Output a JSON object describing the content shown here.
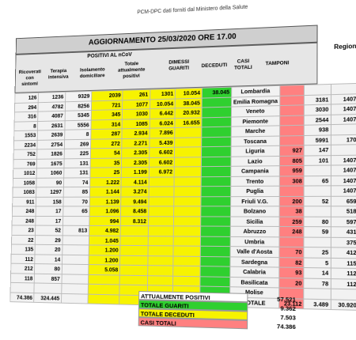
{
  "source_line": "PCM-DPC dati forniti dal Ministero della Salute",
  "title": "AGGIORNAMENTO 25/03/2020 ORE 17.00",
  "regione_header": "Regione",
  "group_header": "POSITIVI AL nCoV",
  "headers": {
    "ricoverati": "Ricoverati con sintomi",
    "terapia": "Terapia intensiva",
    "isolamento": "Isolamento domiciliare",
    "totale_positivi": "Totale attualmente positivi",
    "dimessi": "DIMESSI GUARITI",
    "deceduti": "DECEDUTI",
    "casi_totali": "CASI TOTALI",
    "tamponi": "TAMPONI"
  },
  "rows": [
    [
      "126",
      "1236",
      "9329",
      "2039",
      "261",
      "1301",
      "10.054",
      "38.045",
      "Lombardia",
      "",
      "",
      ""
    ],
    [
      "294",
      "4782",
      "8256",
      "721",
      "1077",
      "10.054",
      "38.045",
      "",
      "Emilia Romagna",
      "",
      "3181",
      "1407"
    ],
    [
      "316",
      "4087",
      "5345",
      "345",
      "1030",
      "6.442",
      "20.932",
      "",
      "Veneto",
      "",
      "3030",
      "1407"
    ],
    [
      "8",
      "2631",
      "5556",
      "314",
      "1085",
      "6.024",
      "16.655",
      "",
      "Piemonte",
      "",
      "2544",
      "1407"
    ],
    [
      "1553",
      "2639",
      "8",
      "287",
      "2.934",
      "7.896",
      "",
      "",
      "Marche",
      "",
      "938",
      ""
    ],
    [
      "2234",
      "2754",
      "269",
      "272",
      "2.271",
      "5.439",
      "",
      "",
      "Toscana",
      "",
      "5991",
      "170"
    ],
    [
      "752",
      "1826",
      "225",
      "54",
      "2.305",
      "6.602",
      "",
      "",
      "Liguria",
      "927",
      "147",
      ""
    ],
    [
      "769",
      "1675",
      "131",
      "35",
      "2.305",
      "6.602",
      "",
      "",
      "Lazio",
      "805",
      "101",
      "1407"
    ],
    [
      "1012",
      "1060",
      "131",
      "25",
      "1.199",
      "6.972",
      "",
      "",
      "Campania",
      "959",
      "",
      "1407"
    ],
    [
      "1058",
      "90",
      "74",
      "1.222",
      "4.114",
      "",
      "",
      "",
      "Trento",
      "308",
      "65",
      "1407"
    ],
    [
      "1083",
      "1297",
      "85",
      "1.144",
      "3.274",
      "",
      "",
      "",
      "Puglia",
      "",
      "",
      "1407"
    ],
    [
      "911",
      "158",
      "70",
      "1.139",
      "9.494",
      "",
      "",
      "",
      "Friuli V.G.",
      "200",
      "52",
      "659"
    ],
    [
      "248",
      "17",
      "65",
      "1.096",
      "8.458",
      "",
      "",
      "",
      "Bolzano",
      "38",
      "",
      "518"
    ],
    [
      "248",
      "17",
      "",
      "994",
      "8.312",
      "",
      "",
      "",
      "Sicilia",
      "259",
      "80",
      "597"
    ],
    [
      "23",
      "52",
      "813",
      "4.982",
      "",
      "",
      "",
      "",
      "Abruzzo",
      "248",
      "59",
      "431"
    ],
    [
      "22",
      "29",
      "",
      "1.045",
      "",
      "",
      "",
      "",
      "Umbria",
      "",
      "",
      "375"
    ],
    [
      "135",
      "20",
      "",
      "1.200",
      "",
      "",
      "",
      "",
      "Valle d'Aosta",
      "70",
      "25",
      "412"
    ],
    [
      "112",
      "14",
      "",
      "1.200",
      "",
      "",
      "",
      "",
      "Sardegna",
      "82",
      "5",
      "115"
    ],
    [
      "212",
      "80",
      "",
      "5.058",
      "",
      "",
      "",
      "",
      "Calabria",
      "93",
      "14",
      "112"
    ],
    [
      "118",
      "857",
      "",
      "",
      "",
      "",
      "",
      "",
      "Basilicata",
      "20",
      "78",
      "112"
    ],
    [
      "",
      "",
      "",
      "",
      "",
      "",
      "",
      "",
      "Molise",
      "",
      "",
      ""
    ],
    [
      "74.386",
      "324.445",
      "",
      "",
      "",
      "",
      "",
      "",
      "TOTALE",
      "23.112",
      "3.489",
      "30.920"
    ]
  ],
  "totals_row_extra": [
    "57.521",
    "9.362",
    "74.386"
  ],
  "summary": [
    {
      "label": "ATTUALMENTE POSITIVI",
      "value": "57.521",
      "color": "plain"
    },
    {
      "label": "TOTALE GUARITI",
      "value": "9.362",
      "color": "green"
    },
    {
      "label": "TOTALE DECEDUTI",
      "value": "7.503",
      "color": "yellow"
    },
    {
      "label": "CASI TOTALI",
      "value": "74.386",
      "color": "red"
    }
  ],
  "colors": {
    "positivi": "#f7f300",
    "guariti": "#2fd02f",
    "deceduti_cases": "#ff8080",
    "header": "#cfcfcf"
  }
}
